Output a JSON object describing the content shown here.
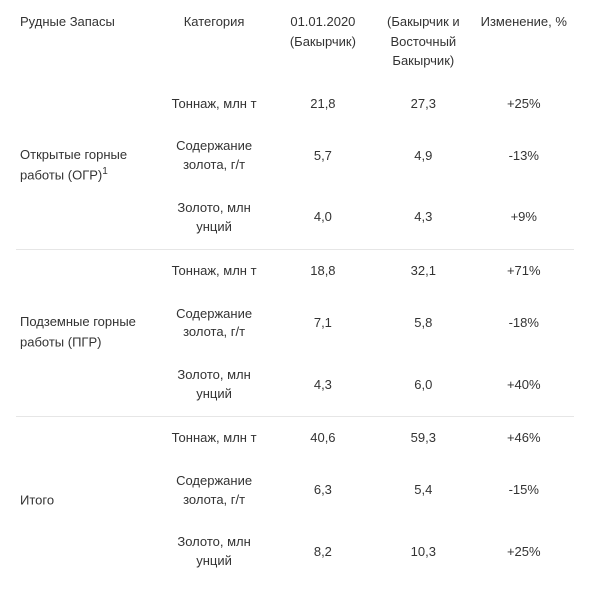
{
  "columns": [
    "Рудные Запасы",
    "Категория",
    "01.01.2020 (Бакырчик)",
    "(Бакырчик и Восточный Бакырчик)",
    "Изменение, %"
  ],
  "groups": [
    {
      "label_line1": "Открытые горные",
      "label_line2": "работы (ОГР)",
      "footnote": "1",
      "rows": [
        {
          "cat": "Тоннаж, млн т",
          "v1": "21,8",
          "v2": "27,3",
          "chg": "+25%"
        },
        {
          "cat": "Содержание золота, г/т",
          "v1": "5,7",
          "v2": "4,9",
          "chg": "-13%"
        },
        {
          "cat": "Золото, млн унций",
          "v1": "4,0",
          "v2": "4,3",
          "chg": "+9%"
        }
      ]
    },
    {
      "label_line1": "Подземные горные",
      "label_line2": "работы (ПГР)",
      "footnote": "",
      "rows": [
        {
          "cat": "Тоннаж, млн т",
          "v1": "18,8",
          "v2": "32,1",
          "chg": "+71%"
        },
        {
          "cat": "Содержание золота, г/т",
          "v1": "7,1",
          "v2": "5,8",
          "chg": "-18%"
        },
        {
          "cat": "Золото, млн унций",
          "v1": "4,3",
          "v2": "6,0",
          "chg": "+40%"
        }
      ]
    },
    {
      "label_line1": "Итого",
      "label_line2": "",
      "footnote": "",
      "rows": [
        {
          "cat": "Тоннаж, млн т",
          "v1": "40,6",
          "v2": "59,3",
          "chg": "+46%"
        },
        {
          "cat": "Содержание золота, г/т",
          "v1": "6,3",
          "v2": "5,4",
          "chg": "-15%"
        },
        {
          "cat": "Золото, млн унций",
          "v1": "8,2",
          "v2": "10,3",
          "chg": "+25%"
        }
      ]
    }
  ]
}
